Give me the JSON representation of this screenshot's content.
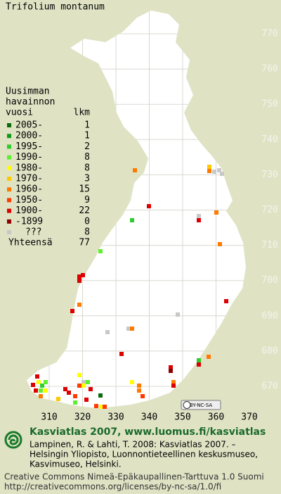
{
  "title": "Trifolium montanum",
  "legend": {
    "heading": [
      "Uusimman",
      "havainnon",
      "vuosi"
    ],
    "count_heading": "lkm",
    "entries": [
      {
        "label": "2005-",
        "count": 1,
        "color": "#0b6b0b"
      },
      {
        "label": "2000-",
        "count": 1,
        "color": "#129a12"
      },
      {
        "label": "1995-",
        "count": 2,
        "color": "#2ecc2e"
      },
      {
        "label": "1990-",
        "count": 8,
        "color": "#5ef030"
      },
      {
        "label": "1980-",
        "count": 8,
        "color": "#ffff00"
      },
      {
        "label": "1970-",
        "count": 3,
        "color": "#ffc800"
      },
      {
        "label": "1960-",
        "count": 15,
        "color": "#ff7a00"
      },
      {
        "label": "1950-",
        "count": 9,
        "color": "#ff3a00"
      },
      {
        "label": "1900-",
        "count": 22,
        "color": "#dd0000"
      },
      {
        "label": "-1899",
        "count": 0,
        "color": "#8c0000"
      },
      {
        "label": "???",
        "count": 8,
        "color": "#c8c8c8"
      }
    ],
    "total": {
      "label": "Yhteensä",
      "count": 77
    }
  },
  "grid": {
    "northing": [
      770,
      760,
      750,
      740,
      730,
      720,
      710,
      700,
      690,
      680,
      670
    ],
    "easting": [
      310,
      320,
      330,
      340,
      350,
      360,
      370
    ]
  },
  "license_badge": "BY-NC-SA",
  "footer": {
    "site": "Kasviatlas 2007, www.luomus.fi/kasviatlas",
    "citation": [
      "Lampinen, R. & Lahti, T. 2008: Kasviatlas 2007. –",
      "Helsingin Yliopisto, Luonnontieteellinen keskusmuseo,",
      "Kasvimuseo, Helsinki."
    ],
    "license": [
      "Creative Commons Nimeä-Epäkaupallinen-Tarttuva 1.0 Suomi",
      "http://creativecommons.org/licenses/by-nc-sa/1.0/fi"
    ]
  }
}
